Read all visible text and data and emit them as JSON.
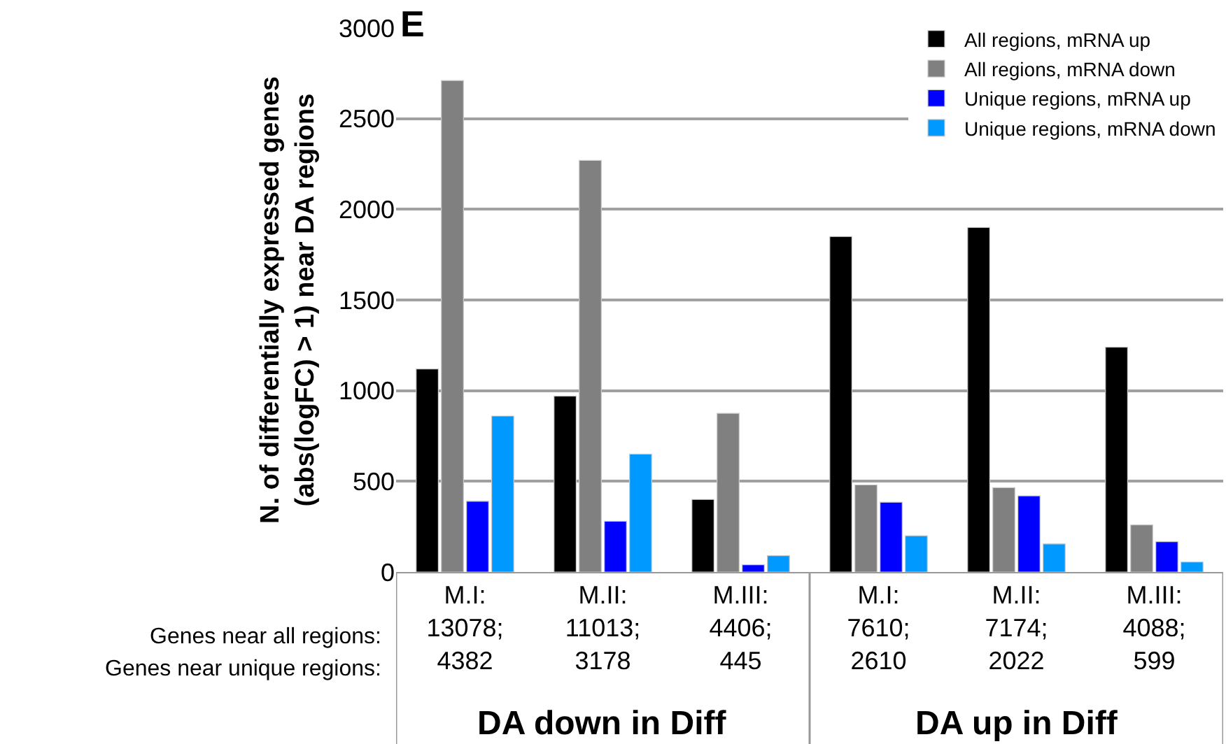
{
  "chart_data": {
    "type": "bar",
    "title": "E",
    "ylabel": "N. of differentially expressed genes\n(abs(logFC) > 1) near DA regions",
    "categories": [
      "M.I:\n13078;\n4382",
      "M.II:\n11013;\n3178",
      "M.III:\n4406;\n445",
      "M.I:\n7610;\n2610",
      "M.II:\n7174;\n2022",
      "M.III:\n4088;\n599"
    ],
    "series": [
      {
        "name": "All regions, mRNA up",
        "color": "#000000",
        "values": [
          1120,
          970,
          400,
          1850,
          1900,
          1240
        ]
      },
      {
        "name": "All regions, mRNA down",
        "color": "#808080",
        "values": [
          2710,
          2270,
          875,
          480,
          465,
          260
        ]
      },
      {
        "name": "Unique regions, mRNA up",
        "color": "#0000ff",
        "values": [
          390,
          280,
          40,
          385,
          420,
          167
        ]
      },
      {
        "name": "Unique regions, mRNA down",
        "color": "#0099ff",
        "values": [
          860,
          650,
          90,
          200,
          155,
          55
        ]
      }
    ],
    "ylim": [
      0,
      3000
    ],
    "yticks": [
      0,
      500,
      1000,
      1500,
      2000,
      2500,
      3000
    ],
    "grid": "y",
    "legend": "top right",
    "annotations": [
      "Genes near all regions:",
      "Genes near unique regions:",
      "DA down in Diff",
      "DA up in Diff"
    ]
  }
}
